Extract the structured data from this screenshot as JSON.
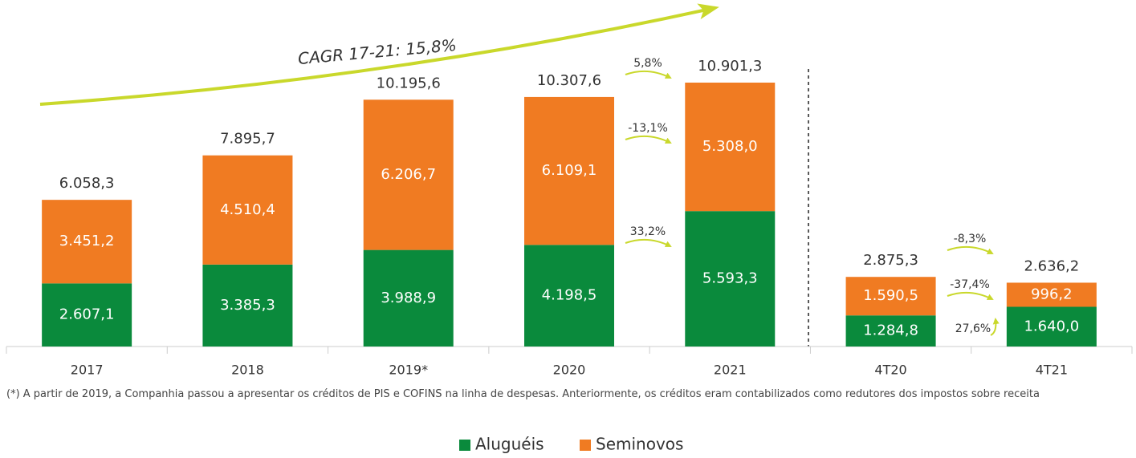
{
  "chart_data": {
    "type": "stacked_bar",
    "categories": [
      "2017",
      "2018",
      "2019*",
      "2020",
      "2021",
      "4T20",
      "4T21"
    ],
    "series": [
      {
        "name": "Aluguéis",
        "color": "#0a8a3c",
        "values": [
          2607.1,
          3385.3,
          3988.9,
          4198.5,
          5593.3,
          1284.8,
          1640.0
        ],
        "value_labels": [
          "2.607,1",
          "3.385,3",
          "3.988,9",
          "4.198,5",
          "5.593,3",
          "1.284,8",
          "1.640,0"
        ]
      },
      {
        "name": "Seminovos",
        "color": "#f07b22",
        "values": [
          3451.2,
          4510.4,
          6206.7,
          6109.1,
          5308.0,
          1590.5,
          996.2
        ],
        "value_labels": [
          "3.451,2",
          "4.510,4",
          "6.206,7",
          "6.109,1",
          "5.308,0",
          "1.590,5",
          "996,2"
        ]
      }
    ],
    "totals": [
      6058.3,
      7895.7,
      10195.6,
      10307.6,
      10901.3,
      2875.3,
      2636.2
    ],
    "total_labels": [
      "6.058,3",
      "7.895,7",
      "10.195,6",
      "10.307,6",
      "10.901,3",
      "2.875,3",
      "2.636,2"
    ],
    "growth": [
      {
        "total": {
          "value": 5.8,
          "label": "5,8%"
        },
        "series": [
          {
            "value": 33.2,
            "label": "33,2%"
          },
          {
            "value": -13.1,
            "label": "-13,1%"
          }
        ]
      },
      {
        "total": {
          "value": -8.3,
          "label": "-8,3%"
        },
        "series": [
          {
            "value": 27.6,
            "label": "27,6%"
          },
          {
            "value": -37.4,
            "label": "-37,4%"
          }
        ]
      }
    ],
    "cagr_label": "CAGR 17-21: 15,8%",
    "footnote": "(*) A partir de 2019, a Companhia passou a apresentar os créditos de PIS e COFINS na linha de despesas. Anteriormente, os créditos eram contabilizados como redutores dos impostos sobre receita",
    "legend": "bottom"
  }
}
